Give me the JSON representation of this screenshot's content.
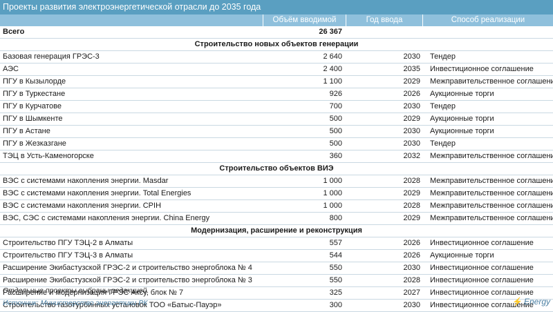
{
  "title": "Проекты развития электроэнергетической отрасли до 2035 года",
  "headers": {
    "volume": "Объём вводимой",
    "year": "Год ввода",
    "method": "Способ реализации"
  },
  "total": {
    "label": "Всего",
    "volume": "26 367"
  },
  "sections": [
    {
      "title": "Строительство новых объектов генерации",
      "rows": [
        {
          "name": "Базовая генерация ГРЭС-3",
          "volume": "2 640",
          "year": "2030",
          "method": "Тендер"
        },
        {
          "name": "АЭС",
          "volume": "2 400",
          "year": "2035",
          "method": "Инвестиционное соглашение"
        },
        {
          "name": "ПГУ в Кызылорде",
          "volume": "1 100",
          "year": "2029",
          "method": "Межправительственное соглашение"
        },
        {
          "name": "ПГУ в Туркестане",
          "volume": "926",
          "year": "2026",
          "method": "Аукционные торги"
        },
        {
          "name": "ПГУ в Курчатове",
          "volume": "700",
          "year": "2030",
          "method": "Тендер"
        },
        {
          "name": "ПГУ в Шымкенте",
          "volume": "500",
          "year": "2029",
          "method": "Аукционные торги"
        },
        {
          "name": "ПГУ в Астане",
          "volume": "500",
          "year": "2030",
          "method": "Аукционные торги"
        },
        {
          "name": "ПГУ в Жезказгане",
          "volume": "500",
          "year": "2030",
          "method": "Тендер"
        },
        {
          "name": "ТЭЦ в Усть-Каменогорске",
          "volume": "360",
          "year": "2032",
          "method": "Межправительственное соглашение"
        }
      ]
    },
    {
      "title": "Строительство объектов ВИЭ",
      "rows": [
        {
          "name": "ВЭС с системами накопления энергии. Masdar",
          "volume": "1 000",
          "year": "2028",
          "method": "Межправительственное соглашение"
        },
        {
          "name": "ВЭС с системами накопления энергии. Total Energies",
          "volume": "1 000",
          "year": "2029",
          "method": "Межправительственное соглашение"
        },
        {
          "name": "ВЭС с системами накопления энергии. CPIH",
          "volume": "1 000",
          "year": "2028",
          "method": "Межправительственное соглашение"
        },
        {
          "name": "ВЭС, СЭС с системами накопления энергии. China Energy",
          "volume": "800",
          "year": "2029",
          "method": "Межправительственное соглашение"
        }
      ]
    },
    {
      "title": "Модернизация, расширение и реконструкция",
      "rows": [
        {
          "name": "Строительство ПГУ ТЭЦ-2 в Алматы",
          "volume": "557",
          "year": "2026",
          "method": "Инвестиционное соглашение"
        },
        {
          "name": "Строительство ПГУ ТЭЦ-3 в Алматы",
          "volume": "544",
          "year": "2026",
          "method": "Аукционные торги"
        },
        {
          "name": "Расширение Экибастузской ГРЭС-2 и строительство энергоблока № 4",
          "volume": "550",
          "year": "2030",
          "method": "Инвестиционное соглашение"
        },
        {
          "name": "Расширение Экибастузской ГРЭС-2 и строительство энергоблока № 3",
          "volume": "550",
          "year": "2028",
          "method": "Инвестиционное соглашение"
        },
        {
          "name": "Расширение и модернизация ГРЭС Аксу, блок № 7",
          "volume": "325",
          "year": "2027",
          "method": "Инвестиционное соглашение"
        },
        {
          "name": "Строительство газотурбинных установок ТОО «Батыс-Пауэр»",
          "volume": "300",
          "year": "2030",
          "method": "Инвестиционное соглашение"
        }
      ]
    }
  ],
  "footnote": "Отдельные проекты выбраны редакцией.",
  "source": "Источник: Министерство энергетики РК",
  "logo": "Energy",
  "logo_icon": "lightning-icon",
  "colors": {
    "title_bar": "#5a9fc1",
    "header": "#8fc0dc",
    "source": "#4a7fa3"
  }
}
